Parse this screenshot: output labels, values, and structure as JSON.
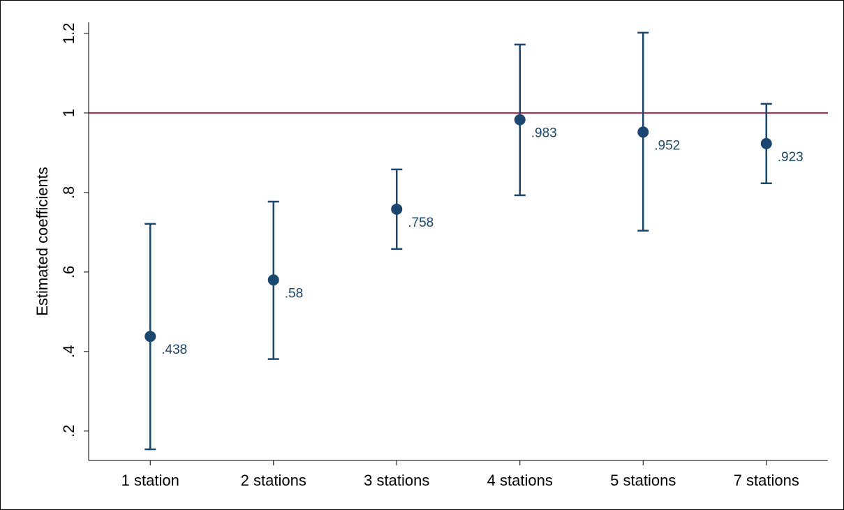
{
  "chart_data": {
    "type": "errorbar",
    "ylabel": "Estimated coefficients",
    "categories": [
      "1 station",
      "2 stations",
      "3 stations",
      "4 stations",
      "5 stations",
      "7 stations"
    ],
    "series": [
      {
        "color": "#1a476f",
        "values": [
          0.438,
          0.58,
          0.758,
          0.983,
          0.952,
          0.923
        ],
        "value_labels": [
          ".438",
          ".58",
          ".758",
          ".983",
          ".952",
          ".923"
        ],
        "lows": [
          0.154,
          0.381,
          0.658,
          0.793,
          0.704,
          0.823
        ],
        "highs": [
          0.721,
          0.777,
          0.858,
          1.172,
          1.202,
          1.023
        ]
      }
    ],
    "ylim": [
      0.126,
      1.228
    ],
    "yticks": [
      {
        "value": 0.2,
        "label": ".2"
      },
      {
        "value": 0.4,
        "label": ".4"
      },
      {
        "value": 0.6,
        "label": ".6"
      },
      {
        "value": 0.8,
        "label": ".8"
      },
      1,
      1.2
    ],
    "refline": 1,
    "refline_color": "#b41e3c"
  }
}
